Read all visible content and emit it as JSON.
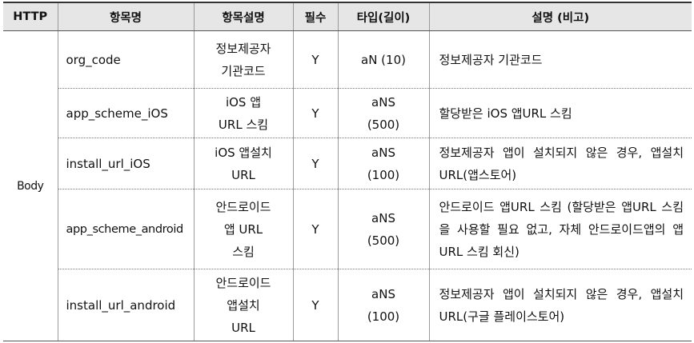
{
  "table": {
    "headers": [
      "HTTP",
      "항목명",
      "항목설명",
      "필수",
      "타입(길이)",
      "설명 (비고)"
    ],
    "http": "Body",
    "rows": [
      {
        "name": "org_code",
        "item_desc": "정보제공자\n기관코드",
        "required": "Y",
        "type": "aN (10)",
        "remark": "정보제공자 기관코드"
      },
      {
        "name": "app_scheme_iOS",
        "item_desc": "iOS 앱\nURL 스킴",
        "required": "Y",
        "type": "aNS\n(500)",
        "remark": "할당받은 iOS 앱URL 스킴"
      },
      {
        "name": "install_url_iOS",
        "item_desc": "iOS 앱설치\nURL",
        "required": "Y",
        "type": "aNS\n(100)",
        "remark": "정보제공자 앱이 설치되지 않은 경우, 앱설치 URL(앱스토어)"
      },
      {
        "name": "app_scheme_android",
        "item_desc": "안드로이드\n앱 URL\n스킴",
        "required": "Y",
        "type": "aNS\n(500)",
        "remark": "안드로이드 앱URL 스킴 (할당받은 앱URL 스킴을 사용할 필요 없고, 자체 안드로이드앱의 앱URL 스킴 회신)"
      },
      {
        "name": "install_url_android",
        "item_desc": "안드로이드\n앱설치\nURL",
        "required": "Y",
        "type": "aNS\n(100)",
        "remark": "정보제공자 앱이 설치되지 않은 경우, 앱설치 URL(구글 플레이스토어)"
      }
    ]
  }
}
